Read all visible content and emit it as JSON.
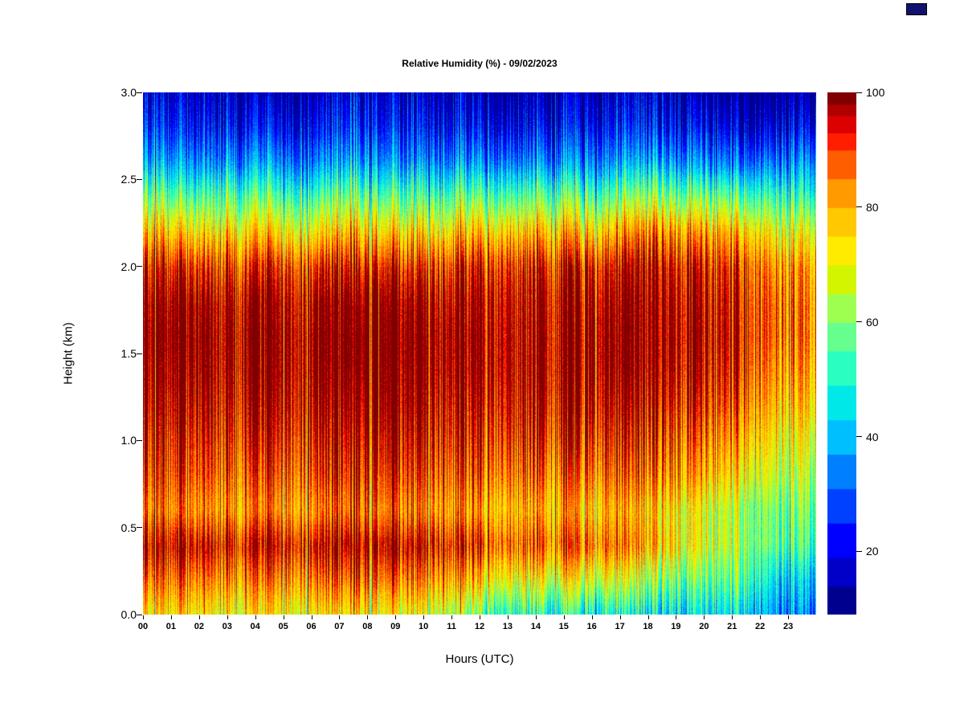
{
  "page": {
    "background": "#ffffff"
  },
  "corner_icon": {
    "color": "#12126e"
  },
  "chart_data": {
    "type": "heatmap",
    "title": "Relative Humidity (%) - 09/02/2023",
    "xlabel": "Hours (UTC)",
    "ylabel": "Height (km)",
    "x_ticks": [
      "00",
      "01",
      "02",
      "03",
      "04",
      "05",
      "06",
      "07",
      "08",
      "09",
      "10",
      "11",
      "12",
      "13",
      "14",
      "15",
      "16",
      "17",
      "18",
      "19",
      "20",
      "21",
      "22",
      "23"
    ],
    "y_ticks": [
      "3.0",
      "2.5",
      "2.0",
      "1.5",
      "1.0",
      "0.5",
      "0.0"
    ],
    "x_range": [
      0,
      24
    ],
    "y_range": [
      0,
      3
    ],
    "units": "%",
    "legend_position": "right-colorbar",
    "grid_lines": false,
    "colorbar": {
      "min": 9,
      "max": 100,
      "ticks": [
        100,
        80,
        60,
        40,
        20
      ],
      "thresholds": [
        9,
        14,
        19,
        25,
        31,
        37,
        43,
        49,
        55,
        60,
        65,
        70,
        75,
        80,
        85,
        90,
        93,
        96,
        98,
        100
      ],
      "colors": [
        "#00008F",
        "#0000C8",
        "#0000FF",
        "#0040FF",
        "#0080FF",
        "#00BFFF",
        "#00E8E8",
        "#2AFFC0",
        "#66FF8F",
        "#9FFF50",
        "#D4F500",
        "#FFEB00",
        "#FFC800",
        "#FF9B00",
        "#FF5E00",
        "#FF1E00",
        "#DC0000",
        "#B00000",
        "#800000"
      ]
    },
    "grid": {
      "heights": [
        0.0,
        0.2,
        0.4,
        0.6,
        0.8,
        1.0,
        1.2,
        1.4,
        1.6,
        1.8,
        2.0,
        2.2,
        2.4,
        2.6,
        2.8,
        3.0
      ],
      "hours": [
        0,
        1,
        2,
        3,
        4,
        5,
        6,
        7,
        8,
        9,
        10,
        11,
        12,
        13,
        14,
        15,
        16,
        17,
        18,
        19,
        20,
        21,
        22,
        23
      ],
      "values": [
        [
          70,
          82,
          93,
          80,
          86,
          90,
          94,
          97,
          99,
          97,
          90,
          74,
          55,
          35,
          22,
          14
        ],
        [
          70,
          82,
          93,
          80,
          86,
          90,
          94,
          97,
          99,
          97,
          89,
          72,
          52,
          33,
          20,
          13
        ],
        [
          70,
          83,
          94,
          80,
          87,
          91,
          95,
          98,
          99,
          97,
          89,
          72,
          54,
          34,
          21,
          14
        ],
        [
          71,
          83,
          94,
          81,
          87,
          92,
          96,
          99,
          100,
          98,
          90,
          75,
          56,
          36,
          22,
          14
        ],
        [
          72,
          84,
          95,
          82,
          88,
          93,
          97,
          99,
          100,
          98,
          91,
          74,
          55,
          35,
          21,
          13
        ],
        [
          71,
          84,
          95,
          82,
          88,
          93,
          97,
          100,
          100,
          98,
          91,
          73,
          54,
          34,
          21,
          13
        ],
        [
          70,
          83,
          94,
          81,
          88,
          92,
          96,
          99,
          100,
          98,
          90,
          72,
          53,
          33,
          20,
          13
        ],
        [
          69,
          83,
          94,
          81,
          88,
          92,
          96,
          99,
          100,
          98,
          90,
          73,
          54,
          34,
          21,
          13
        ],
        [
          68,
          82,
          94,
          81,
          88,
          93,
          97,
          99,
          100,
          98,
          90,
          72,
          53,
          33,
          20,
          13
        ],
        [
          67,
          82,
          94,
          81,
          88,
          93,
          97,
          99,
          100,
          98,
          89,
          71,
          52,
          32,
          20,
          13
        ],
        [
          66,
          81,
          93,
          80,
          87,
          92,
          96,
          99,
          100,
          97,
          89,
          72,
          53,
          33,
          20,
          13
        ],
        [
          60,
          78,
          92,
          80,
          87,
          92,
          96,
          99,
          100,
          98,
          92,
          76,
          56,
          35,
          21,
          13
        ],
        [
          55,
          75,
          90,
          80,
          88,
          93,
          97,
          100,
          100,
          99,
          94,
          78,
          57,
          36,
          22,
          14
        ],
        [
          52,
          73,
          89,
          80,
          88,
          94,
          98,
          100,
          100,
          99,
          95,
          79,
          58,
          36,
          22,
          14
        ],
        [
          50,
          72,
          88,
          79,
          87,
          93,
          97,
          100,
          100,
          99,
          94,
          78,
          57,
          35,
          21,
          13
        ],
        [
          48,
          70,
          87,
          78,
          86,
          92,
          97,
          100,
          100,
          99,
          94,
          77,
          56,
          35,
          21,
          13
        ],
        [
          46,
          68,
          85,
          77,
          85,
          91,
          96,
          99,
          100,
          98,
          93,
          76,
          55,
          34,
          21,
          13
        ],
        [
          44,
          64,
          80,
          75,
          84,
          90,
          95,
          99,
          100,
          99,
          95,
          80,
          58,
          36,
          22,
          14
        ],
        [
          42,
          60,
          76,
          73,
          83,
          89,
          95,
          99,
          100,
          99,
          96,
          82,
          60,
          37,
          22,
          14
        ],
        [
          45,
          58,
          72,
          72,
          82,
          88,
          94,
          98,
          100,
          99,
          96,
          83,
          61,
          38,
          23,
          14
        ],
        [
          48,
          60,
          70,
          70,
          80,
          87,
          94,
          98,
          100,
          99,
          96,
          84,
          62,
          38,
          23,
          14
        ],
        [
          50,
          62,
          68,
          68,
          78,
          85,
          92,
          97,
          99,
          98,
          95,
          82,
          60,
          37,
          22,
          14
        ],
        [
          42,
          50,
          62,
          64,
          72,
          78,
          84,
          88,
          92,
          92,
          88,
          76,
          58,
          38,
          23,
          14
        ],
        [
          38,
          46,
          58,
          62,
          68,
          74,
          80,
          85,
          88,
          88,
          85,
          74,
          56,
          40,
          25,
          15
        ]
      ]
    },
    "noise": {
      "column": 14,
      "pixel": 7,
      "seed": 42
    }
  }
}
